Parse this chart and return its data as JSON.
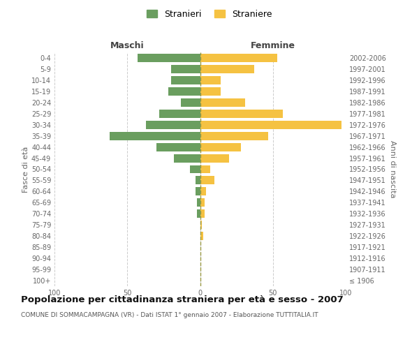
{
  "age_groups": [
    "100+",
    "95-99",
    "90-94",
    "85-89",
    "80-84",
    "75-79",
    "70-74",
    "65-69",
    "60-64",
    "55-59",
    "50-54",
    "45-49",
    "40-44",
    "35-39",
    "30-34",
    "25-29",
    "20-24",
    "15-19",
    "10-14",
    "5-9",
    "0-4"
  ],
  "birth_years": [
    "≤ 1906",
    "1907-1911",
    "1912-1916",
    "1917-1921",
    "1922-1926",
    "1927-1931",
    "1932-1936",
    "1937-1941",
    "1942-1946",
    "1947-1951",
    "1952-1956",
    "1957-1961",
    "1962-1966",
    "1967-1971",
    "1972-1976",
    "1977-1981",
    "1982-1986",
    "1987-1991",
    "1992-1996",
    "1997-2001",
    "2002-2006"
  ],
  "maschi": [
    0,
    0,
    0,
    0,
    0,
    0,
    2,
    2,
    3,
    3,
    7,
    18,
    30,
    62,
    37,
    28,
    13,
    22,
    20,
    20,
    43
  ],
  "femmine": [
    0,
    0,
    0,
    0,
    2,
    1,
    3,
    3,
    4,
    10,
    7,
    20,
    28,
    47,
    97,
    57,
    31,
    14,
    14,
    37,
    53
  ],
  "maschi_color": "#6a9e5f",
  "femmine_color": "#f5c242",
  "center_line_color": "#999944",
  "grid_color": "#cccccc",
  "title": "Popolazione per cittadinanza straniera per età e sesso - 2007",
  "subtitle": "COMUNE DI SOMMACAMPAGNA (VR) - Dati ISTAT 1° gennaio 2007 - Elaborazione TUTTITALIA.IT",
  "ylabel_left": "Fasce di età",
  "ylabel_right": "Anni di nascita",
  "label_maschi": "Maschi",
  "label_femmine": "Femmine",
  "legend_maschi": "Stranieri",
  "legend_femmine": "Straniere",
  "xlim": 100,
  "bar_height": 0.75,
  "tick_fontsize": 7,
  "label_fontsize": 8,
  "legend_fontsize": 9,
  "title_fontsize": 9.5,
  "subtitle_fontsize": 6.5
}
